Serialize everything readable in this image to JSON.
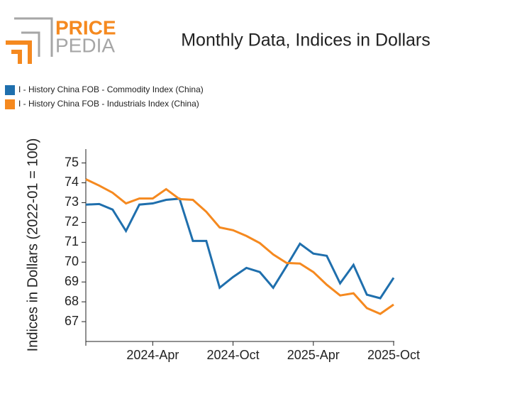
{
  "logo": {
    "top": "PRICE",
    "bottom": "PEDIA"
  },
  "chart_data": {
    "type": "line",
    "title": "Monthly Data, Indices in Dollars",
    "y_label": "Indices in Dollars (2022-01 = 100)",
    "categories": [
      null,
      null,
      null,
      null,
      null,
      "2024-Apr",
      null,
      null,
      null,
      null,
      null,
      "2024-Oct",
      null,
      null,
      null,
      null,
      null,
      "2025-Apr",
      null,
      null,
      null,
      null,
      null,
      "2025-Oct"
    ],
    "series": [
      {
        "name": "I - History China FOB - Commodity Index (China)",
        "color": "#1f6fad",
        "values": [
          72.9,
          72.93,
          72.65,
          71.57,
          72.9,
          72.96,
          73.14,
          73.2,
          71.07,
          71.07,
          68.71,
          69.25,
          69.71,
          69.5,
          68.71,
          69.8,
          70.93,
          70.43,
          70.32,
          68.93,
          69.86,
          68.36,
          68.18,
          69.21
        ]
      },
      {
        "name": "I - History China FOB - Industrials Index (China)",
        "color": "#f5891f",
        "values": [
          74.18,
          73.86,
          73.5,
          72.96,
          73.21,
          73.21,
          73.68,
          73.18,
          73.14,
          72.54,
          71.75,
          71.61,
          71.32,
          70.96,
          70.39,
          69.96,
          69.93,
          69.5,
          68.86,
          68.32,
          68.43,
          67.68,
          67.39,
          67.86
        ]
      }
    ],
    "ylim": [
      66,
      75.7
    ],
    "yticks": [
      67,
      68,
      69,
      70,
      71,
      72,
      73,
      74,
      75
    ],
    "grid": false
  }
}
